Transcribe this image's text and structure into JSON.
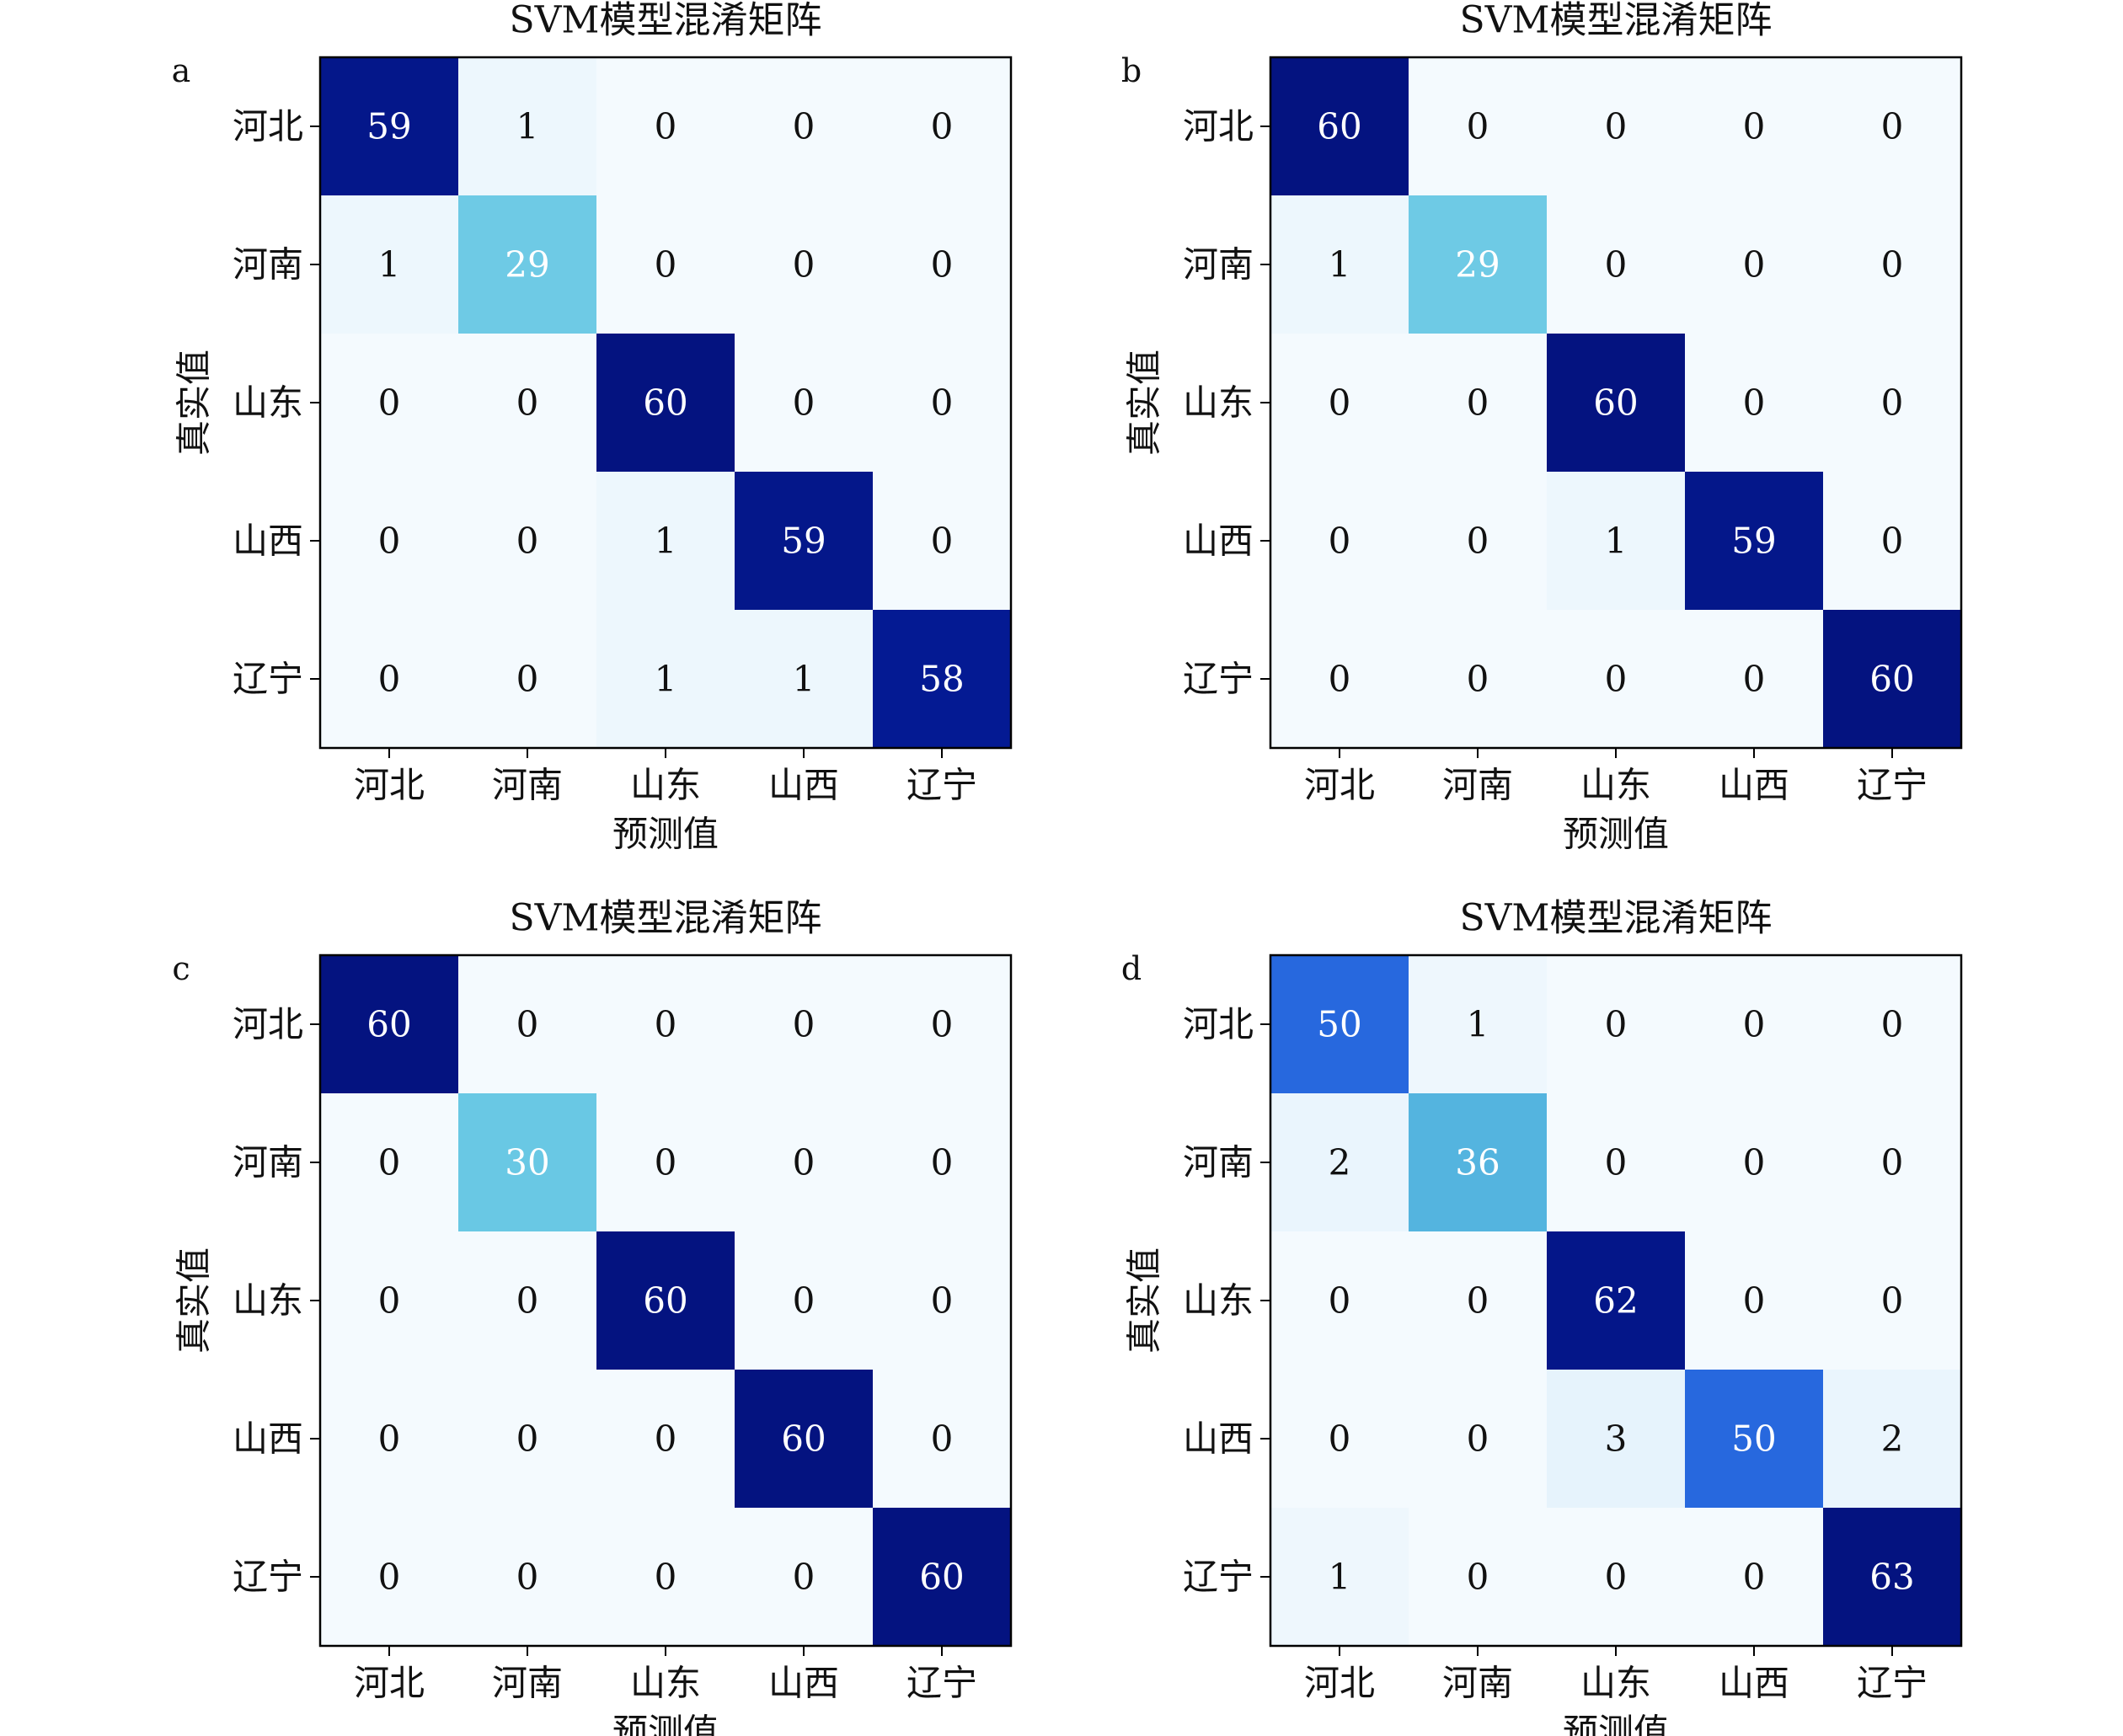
{
  "chart_data": [
    {
      "type": "heatmap",
      "panel": "a",
      "title": "SVM模型混淆矩阵",
      "xlabel": "预测值",
      "ylabel": "真实值",
      "x_categories": [
        "河北",
        "河南",
        "山东",
        "山西",
        "辽宁"
      ],
      "y_categories": [
        "河北",
        "河南",
        "山东",
        "山西",
        "辽宁"
      ],
      "values": [
        [
          59,
          1,
          0,
          0,
          0
        ],
        [
          1,
          29,
          0,
          0,
          0
        ],
        [
          0,
          0,
          60,
          0,
          0
        ],
        [
          0,
          0,
          1,
          59,
          0
        ],
        [
          0,
          0,
          1,
          1,
          58
        ]
      ],
      "colormap": "Blues"
    },
    {
      "type": "heatmap",
      "panel": "b",
      "title": "SVM模型混淆矩阵",
      "xlabel": "预测值",
      "ylabel": "真实值",
      "x_categories": [
        "河北",
        "河南",
        "山东",
        "山西",
        "辽宁"
      ],
      "y_categories": [
        "河北",
        "河南",
        "山东",
        "山西",
        "辽宁"
      ],
      "values": [
        [
          60,
          0,
          0,
          0,
          0
        ],
        [
          1,
          29,
          0,
          0,
          0
        ],
        [
          0,
          0,
          60,
          0,
          0
        ],
        [
          0,
          0,
          1,
          59,
          0
        ],
        [
          0,
          0,
          0,
          0,
          60
        ]
      ],
      "colormap": "Blues"
    },
    {
      "type": "heatmap",
      "panel": "c",
      "title": "SVM模型混淆矩阵",
      "xlabel": "预测值",
      "ylabel": "真实值",
      "x_categories": [
        "河北",
        "河南",
        "山东",
        "山西",
        "辽宁"
      ],
      "y_categories": [
        "河北",
        "河南",
        "山东",
        "山西",
        "辽宁"
      ],
      "values": [
        [
          60,
          0,
          0,
          0,
          0
        ],
        [
          0,
          30,
          0,
          0,
          0
        ],
        [
          0,
          0,
          60,
          0,
          0
        ],
        [
          0,
          0,
          0,
          60,
          0
        ],
        [
          0,
          0,
          0,
          0,
          60
        ]
      ],
      "colormap": "Blues"
    },
    {
      "type": "heatmap",
      "panel": "d",
      "title": "SVM模型混淆矩阵",
      "xlabel": "预测值",
      "ylabel": "真实值",
      "x_categories": [
        "河北",
        "河南",
        "山东",
        "山西",
        "辽宁"
      ],
      "y_categories": [
        "河北",
        "河南",
        "山东",
        "山西",
        "辽宁"
      ],
      "values": [
        [
          50,
          1,
          0,
          0,
          0
        ],
        [
          2,
          36,
          0,
          0,
          0
        ],
        [
          0,
          0,
          62,
          0,
          0
        ],
        [
          0,
          0,
          3,
          50,
          2
        ],
        [
          1,
          0,
          0,
          0,
          63
        ]
      ],
      "colormap": "Blues"
    }
  ]
}
